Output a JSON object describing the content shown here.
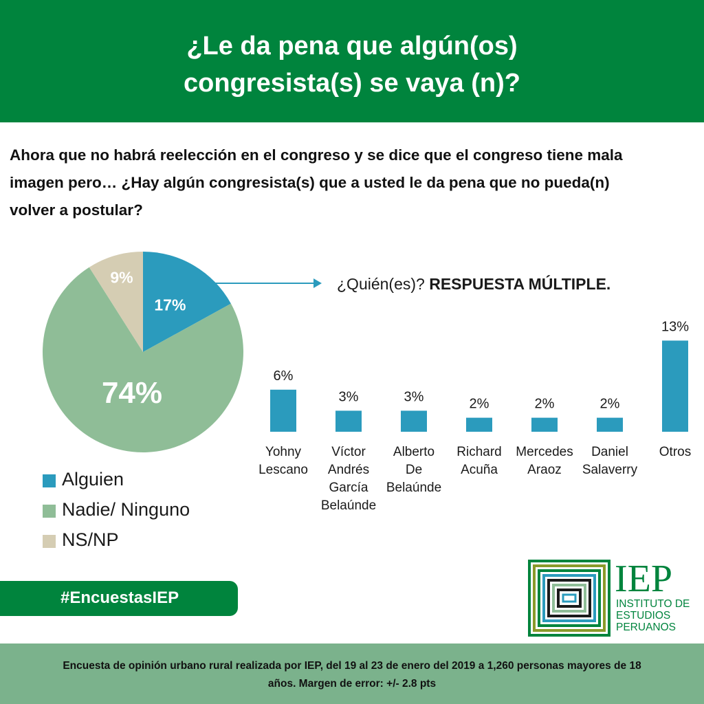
{
  "header": {
    "title_line1": "¿Le da pena que algún(os)",
    "title_line2": "congresista(s) se vaya (n)?"
  },
  "question": {
    "line1": "Ahora que no habrá reelección en el congreso y se dice que el congreso tiene mala",
    "line2": "imagen pero… ¿Hay algún congresista(s) que a usted le da pena que no pueda(n)",
    "line3": "volver a postular?"
  },
  "subtitle": {
    "prefix": "¿Quién(es)? ",
    "bold": "RESPUESTA MÚLTIPLE."
  },
  "colors": {
    "header_green": "#00843d",
    "bar_blue": "#2b9bbd",
    "pie_alguien": "#2b9bbd",
    "pie_nadie": "#8fbd97",
    "pie_nsnp": "#d5cdb3",
    "footer_green": "#7bb28c"
  },
  "chart_data": [
    {
      "type": "pie",
      "slices": [
        {
          "label": "Alguien",
          "value": 17,
          "display": "17%",
          "color": "#2b9bbd"
        },
        {
          "label": "Nadie/ Ninguno",
          "value": 74,
          "display": "74%",
          "color": "#8fbd97"
        },
        {
          "label": "NS/NP",
          "value": 9,
          "display": "9%",
          "color": "#d5cdb3"
        }
      ],
      "legend": [
        "Alguien",
        "Nadie/ Ninguno",
        "NS/NP"
      ]
    },
    {
      "type": "bar",
      "categories": [
        [
          "Yohny",
          "Lescano"
        ],
        [
          "Víctor",
          "Andrés",
          "García",
          "Belaúnde"
        ],
        [
          "Alberto",
          "De",
          "Belaúnde"
        ],
        [
          "Richard",
          "Acuña"
        ],
        [
          "Mercedes",
          "Araoz"
        ],
        [
          "Daniel",
          "Salaverry"
        ],
        [
          "Otros"
        ]
      ],
      "values": [
        6,
        3,
        3,
        2,
        2,
        2,
        13
      ],
      "value_labels": [
        "6%",
        "3%",
        "3%",
        "2%",
        "2%",
        "2%",
        "13%"
      ]
    }
  ],
  "hashtag": "#EncuestasIEP",
  "logo": {
    "acronym": "IEP",
    "line1": "INSTITUTO DE",
    "line2": "ESTUDIOS",
    "line3": "PERUANOS"
  },
  "footer": {
    "line1": "Encuesta de opinión urbano rural realizada por IEP, del 19 al 23 de enero del 2019 a 1,260 personas mayores de 18",
    "line2": "años. Margen de error: +/- 2.8 pts"
  }
}
